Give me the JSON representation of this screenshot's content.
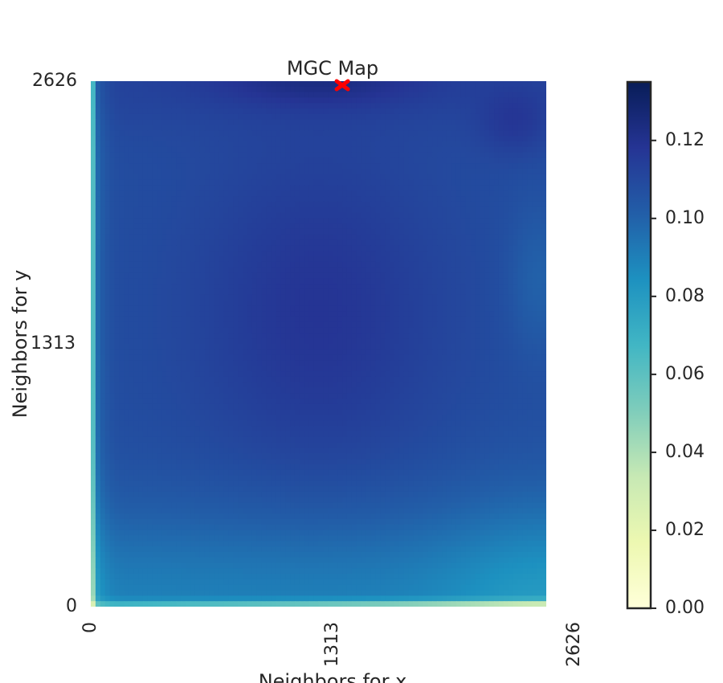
{
  "chart_data": {
    "type": "heatmap",
    "title": "MGC Map",
    "xlabel": "Neighbors for x",
    "ylabel": "Neighbors for y",
    "x_ticks": [
      "0",
      "1313",
      "2626"
    ],
    "y_ticks": [
      "0",
      "1313",
      "2626"
    ],
    "xlim": [
      0,
      2626
    ],
    "ylim": [
      0,
      2626
    ],
    "colormap": "YlGnBu",
    "colormap_stops": [
      "#ffffd9",
      "#edf8b1",
      "#c7e9b4",
      "#7fcdbb",
      "#41b6c4",
      "#1d91c0",
      "#225ea8",
      "#253494",
      "#081d58"
    ],
    "colorbar": {
      "min": 0.0,
      "max": 0.135,
      "ticks": [
        0.0,
        0.02,
        0.04,
        0.06,
        0.08,
        0.1,
        0.12
      ],
      "tick_labels": [
        "0.00",
        "0.02",
        "0.04",
        "0.06",
        "0.08",
        "0.10",
        "0.12"
      ]
    },
    "value_range": [
      0.0,
      0.13
    ],
    "optimal_scale": {
      "x": 1450,
      "y": 2626,
      "marker": "x",
      "color": "#ff0000"
    }
  }
}
